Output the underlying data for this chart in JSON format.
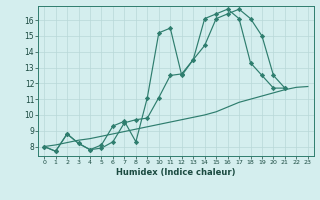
{
  "xlabel": "Humidex (Indice chaleur)",
  "background_color": "#d4eeee",
  "line_color": "#2e7d6e",
  "grid_color": "#b8d8d8",
  "xlim": [
    -0.5,
    23.5
  ],
  "ylim": [
    7.4,
    16.9
  ],
  "xticks": [
    0,
    1,
    2,
    3,
    4,
    5,
    6,
    7,
    8,
    9,
    10,
    11,
    12,
    13,
    14,
    15,
    16,
    17,
    18,
    19,
    20,
    21,
    22,
    23
  ],
  "yticks": [
    8,
    9,
    10,
    11,
    12,
    13,
    14,
    15,
    16
  ],
  "line1_x": [
    0,
    1,
    2,
    3,
    4,
    5,
    6,
    7,
    8,
    9,
    10,
    11,
    12,
    13,
    14,
    15,
    16,
    17,
    18,
    19,
    20,
    21,
    22,
    23
  ],
  "line1_y": [
    8.0,
    8.1,
    8.25,
    8.4,
    8.5,
    8.65,
    8.8,
    8.95,
    9.1,
    9.25,
    9.4,
    9.55,
    9.7,
    9.85,
    10.0,
    10.2,
    10.5,
    10.8,
    11.0,
    11.2,
    11.4,
    11.6,
    11.75,
    11.8
  ],
  "line2_x": [
    0,
    1,
    2,
    3,
    4,
    5,
    6,
    7,
    8,
    9,
    10,
    11,
    12,
    13,
    14,
    15,
    16,
    17,
    18,
    19,
    20,
    21
  ],
  "line2_y": [
    8.0,
    7.7,
    8.8,
    8.2,
    7.8,
    7.9,
    8.3,
    9.5,
    9.7,
    9.8,
    11.1,
    12.5,
    12.6,
    13.5,
    14.4,
    16.1,
    16.4,
    16.7,
    16.1,
    15.0,
    12.5,
    11.7
  ],
  "line3_x": [
    0,
    1,
    2,
    3,
    4,
    5,
    6,
    7,
    8,
    9,
    10,
    11,
    12,
    13,
    14,
    15,
    16,
    17,
    18,
    19,
    20,
    21
  ],
  "line3_y": [
    8.0,
    7.7,
    8.8,
    8.2,
    7.8,
    8.1,
    9.3,
    9.6,
    8.3,
    11.1,
    15.2,
    15.5,
    12.5,
    13.5,
    16.1,
    16.4,
    16.7,
    16.1,
    13.3,
    12.5,
    11.7,
    11.7
  ]
}
